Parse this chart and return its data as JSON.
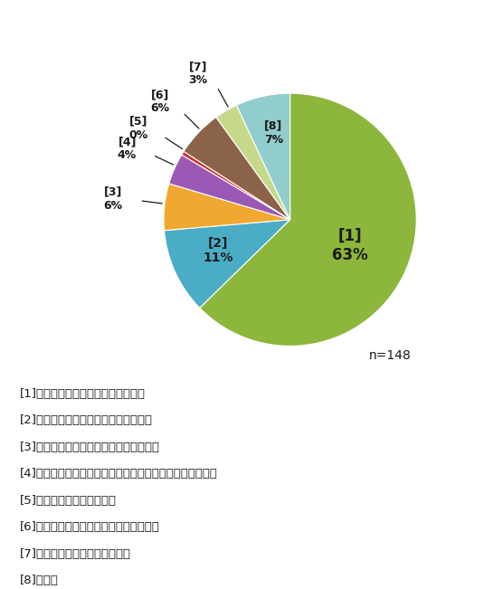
{
  "slices": [
    63,
    11,
    6,
    4,
    0.5,
    6,
    3,
    7
  ],
  "display_pcts": [
    "63%",
    "11%",
    "6%",
    "4%",
    "0%",
    "6%",
    "3%",
    "7%"
  ],
  "labels": [
    "[1]",
    "[2]",
    "[3]",
    "[4]",
    "[5]",
    "[6]",
    "[7]",
    "[8]"
  ],
  "colors": [
    "#8db63c",
    "#4bacc6",
    "#f0a830",
    "#9b59b6",
    "#cc3333",
    "#8b6348",
    "#c6d98a",
    "#92cdcd"
  ],
  "legend_items": [
    "[1]使用できる状態である、問題ない",
    "[2]外壁の一部に破損、崩れがみられる",
    "[3]屋根の瓦やトタン板等に剥がれがある",
    "[4]窓台、物干し、バルコニーのいずれかに崩れがみられる",
    "[5]塀が道路側に傾いている",
    "[6]庭などの草木に手入れができていない",
    "[7]把握していない、わからない",
    "[8]その他"
  ],
  "n_label": "n=148",
  "background_color": "#ffffff",
  "text_color": "#1a1a1a",
  "figsize": [
    5.55,
    6.51
  ],
  "dpi": 100
}
